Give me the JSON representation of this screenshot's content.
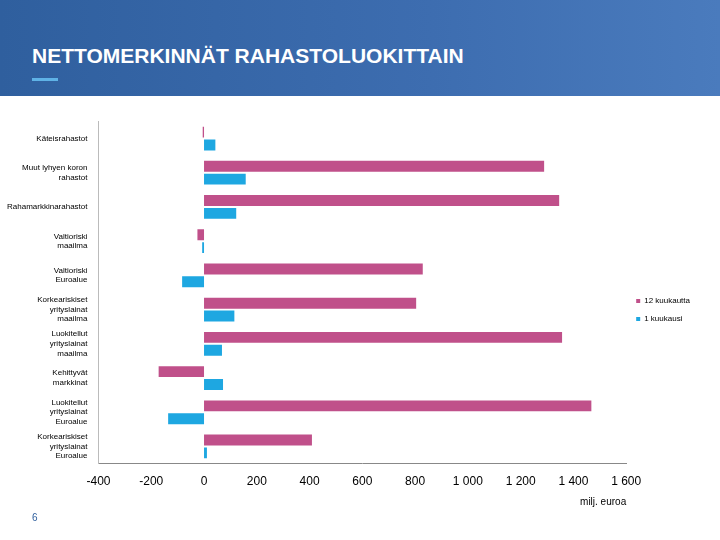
{
  "chart_data": {
    "type": "bar",
    "title": "NETTOMERKINNÄT RAHASTOLUOKITTAIN",
    "orientation": "horizontal",
    "categories": [
      "Käteisrahastot",
      "Muut lyhyen koron rahastot",
      "Rahamarkkinarahastot",
      "Valtioriski maailma",
      "Valtioriski Euroalue",
      "Korkeariskiset yrityslainat maailma",
      "Luokitellut yrityslainat maailma",
      "Kehittyvät markkinat",
      "Luokitellut yrityslainat Euroalue",
      "Korkeariskiset yrityslainat Euroalue"
    ],
    "series": [
      {
        "name": "12 kuukautta",
        "color": "#c0508a",
        "values": [
          -5,
          1289,
          1346,
          -25,
          829,
          804,
          1357,
          -172,
          1468,
          409
        ]
      },
      {
        "name": "1 kuukausi",
        "color": "#1ea7e1",
        "values": [
          43,
          158,
          122,
          -7,
          -83,
          115,
          68,
          72,
          -136,
          11
        ]
      }
    ],
    "x_label": "milj. euroa",
    "xlim": [
      -400,
      1600
    ],
    "xticks": [
      -400,
      -200,
      0,
      200,
      400,
      600,
      800,
      {
        "value": 1000,
        "label": "1 000"
      },
      {
        "value": 1200,
        "label": "1 200"
      },
      {
        "value": 1400,
        "label": "1 400"
      },
      {
        "value": 1600,
        "label": "1 600"
      }
    ],
    "grid": false,
    "legend": "right",
    "data_labels": false
  },
  "page_number": "6"
}
